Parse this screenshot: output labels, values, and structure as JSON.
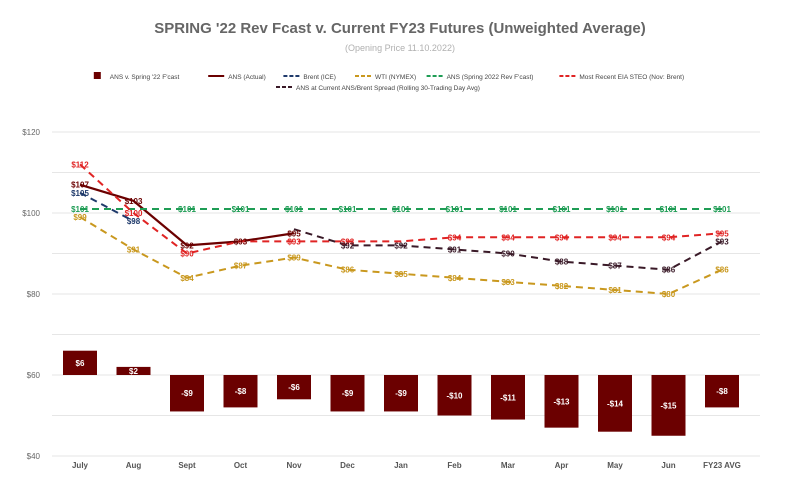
{
  "chart_data": {
    "type": "bar+line",
    "title": "SPRING '22 Rev Fcast v. Current FY23 Futures (Unweighted Average)",
    "subtitle": "(Opening Price 11.10.2022)",
    "categories": [
      "July",
      "Aug",
      "Sept",
      "Oct",
      "Nov",
      "Dec",
      "Jan",
      "Feb",
      "Mar",
      "Apr",
      "May",
      "Jun",
      "FY23 AVG"
    ],
    "y_axis": {
      "min": 40,
      "max": 120,
      "ticks": [
        40,
        60,
        80,
        100,
        120
      ],
      "format": "$"
    },
    "grid": true,
    "legend_position": "top",
    "bar_series": {
      "name": "ANS v. Spring '22 F'cast",
      "color": "#6b0000",
      "base": 60,
      "values": [
        6,
        2,
        -9,
        -8,
        -6,
        -9,
        -9,
        -10,
        -11,
        -13,
        -14,
        -15,
        -8
      ],
      "labels": [
        "$6",
        "$2",
        "-$9",
        "-$8",
        "-$6",
        "-$9",
        "-$9",
        "-$10",
        "-$11",
        "-$13",
        "-$14",
        "-$15",
        "-$8"
      ]
    },
    "line_series": [
      {
        "name": "ANS (Actual)",
        "color": "#6b0000",
        "dash": "solid",
        "values": [
          107,
          103,
          92,
          93,
          95,
          null,
          null,
          null,
          null,
          null,
          null,
          null,
          null
        ],
        "labels": [
          "$107",
          "$103",
          "$92",
          "$93",
          "$95",
          "",
          "",
          "",
          "",
          "",
          "",
          "",
          ""
        ]
      },
      {
        "name": "Brent (ICE)",
        "color": "#1f3a6b",
        "dash": "dashed",
        "values": [
          105,
          98,
          null,
          null,
          null,
          null,
          null,
          null,
          null,
          null,
          null,
          null,
          null
        ],
        "labels": [
          "$105",
          "$98",
          "",
          "",
          "",
          "",
          "",
          "",
          "",
          "",
          "",
          "",
          ""
        ]
      },
      {
        "name": "WTI (NYMEX)",
        "color": "#c9981e",
        "dash": "dashed",
        "values": [
          99,
          91,
          84,
          87,
          89,
          86,
          85,
          84,
          83,
          82,
          81,
          80,
          86
        ],
        "labels": [
          "$99",
          "$91",
          "$84",
          "$87",
          "$89",
          "$86",
          "$85",
          "$84",
          "$83",
          "$82",
          "$81",
          "$80",
          "$86"
        ]
      },
      {
        "name": "ANS (Spring 2022 Rev F'cast)",
        "color": "#1f9d55",
        "dash": "dashed",
        "values": [
          101,
          101,
          101,
          101,
          101,
          101,
          101,
          101,
          101,
          101,
          101,
          101,
          101
        ],
        "labels": [
          "$101",
          "",
          "$101",
          "$101",
          "$101",
          "$101",
          "$101",
          "$101",
          "$101",
          "$101",
          "$101",
          "$101",
          "$101"
        ]
      },
      {
        "name": "Most Recent EIA STEO (Nov: Brent)",
        "color": "#e02424",
        "dash": "dashed",
        "values": [
          112,
          100,
          90,
          93,
          93,
          93,
          93,
          94,
          94,
          94,
          94,
          94,
          95
        ],
        "labels": [
          "$112",
          "$100",
          "$90",
          "",
          "$93",
          "$93",
          "",
          "$94",
          "$94",
          "$94",
          "$94",
          "$94",
          "$95"
        ]
      },
      {
        "name": "ANS at Current ANS/Brent Spread (Rolling 30-Trading Day Avg)",
        "color": "#3a1a28",
        "dash": "dashed",
        "values": [
          null,
          null,
          null,
          null,
          96,
          92,
          92,
          91,
          90,
          88,
          87,
          86,
          93
        ],
        "labels": [
          "",
          "",
          "",
          "",
          "",
          "$92",
          "$92",
          "$91",
          "$90",
          "$88",
          "$87",
          "$86",
          "$93"
        ]
      }
    ]
  }
}
